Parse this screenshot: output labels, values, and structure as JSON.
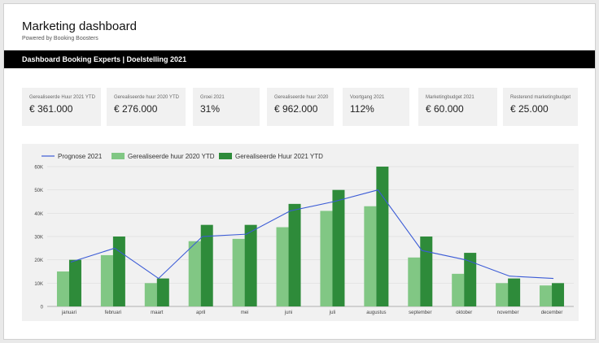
{
  "header": {
    "title": "Marketing dashboard",
    "subtitle": "Powered by Booking Boosters"
  },
  "banner": {
    "text": "Dashboard Booking Experts | Doelstelling 2021"
  },
  "kpis": [
    {
      "label": "Gerealiseerde Huur 2021 YTD",
      "value": "€ 361.000"
    },
    {
      "label": "Gerealiseerde huur 2020 YTD",
      "value": "€ 276.000"
    },
    {
      "label": "Groei 2021",
      "value": "31%"
    },
    {
      "label": "Gerealiseerde huur 2020",
      "value": "€ 962.000"
    },
    {
      "label": "Voortgang 2021",
      "value": "112%"
    },
    {
      "label": "Marketingbudget 2021",
      "value": "€ 60.000"
    },
    {
      "label": "Resterend marketingbudget",
      "value": "€ 25.000"
    }
  ],
  "colors": {
    "line": "#3b5bd6",
    "bar2020": "#81c784",
    "bar2021": "#2e8b3a"
  },
  "chart_data": {
    "type": "bar",
    "categories": [
      "januari",
      "februari",
      "maart",
      "april",
      "mei",
      "juni",
      "juli",
      "augustus",
      "september",
      "oktober",
      "november",
      "december"
    ],
    "series": [
      {
        "name": "Prognose 2021",
        "kind": "line",
        "values": [
          19000,
          25000,
          12000,
          30000,
          31000,
          41000,
          45000,
          50000,
          24000,
          20000,
          13000,
          12000
        ]
      },
      {
        "name": "Gerealiseerde huur 2020 YTD",
        "kind": "bar",
        "values": [
          15000,
          22000,
          10000,
          28000,
          29000,
          34000,
          41000,
          43000,
          21000,
          14000,
          10000,
          9000
        ]
      },
      {
        "name": "Gerealiseerde Huur 2021 YTD",
        "kind": "bar",
        "values": [
          20000,
          30000,
          12000,
          35000,
          35000,
          44000,
          50000,
          60000,
          30000,
          23000,
          12000,
          10000
        ]
      }
    ],
    "yticks": [
      "0",
      "10K",
      "20K",
      "30K",
      "40K",
      "50K",
      "60K"
    ],
    "ylim": [
      0,
      60000
    ],
    "legend": "top-left",
    "grid": true
  }
}
